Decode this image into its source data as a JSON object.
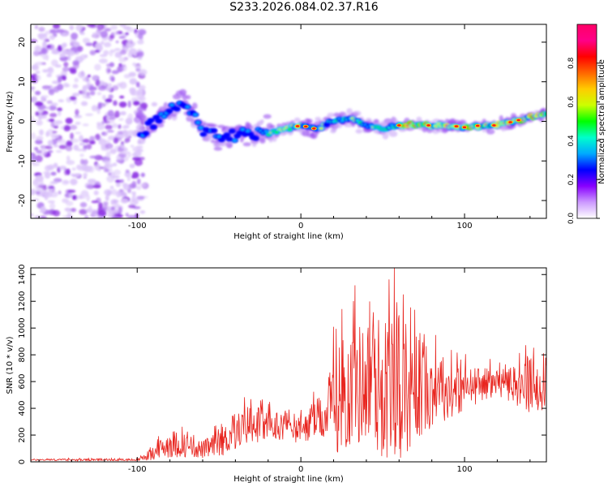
{
  "title": "S233.2026.084.02.37.R16",
  "chart_data": [
    {
      "type": "heatmap",
      "xlabel": "Height of straight line (km)",
      "ylabel": "Frequency (Hz)",
      "xlim": [
        -165,
        150
      ],
      "ylim": [
        -24.5,
        24.5
      ],
      "x_ticks": [
        -100,
        0,
        100
      ],
      "x_tick_labels": [
        "-100",
        "0",
        "100"
      ],
      "y_ticks": [
        -20,
        -10,
        0,
        10,
        20
      ],
      "y_tick_labels": [
        "-20",
        "-10",
        "0",
        "10",
        "20"
      ],
      "noise_region_x": [
        -165,
        -95
      ],
      "signal_track": [
        {
          "x": -98,
          "y": -3.5
        },
        {
          "x": -90,
          "y": 0
        },
        {
          "x": -80,
          "y": 3
        },
        {
          "x": -72,
          "y": 5
        },
        {
          "x": -60,
          "y": -2
        },
        {
          "x": -50,
          "y": -4
        },
        {
          "x": -40,
          "y": -3
        },
        {
          "x": -30,
          "y": -3
        },
        {
          "x": -20,
          "y": -3
        },
        {
          "x": -10,
          "y": -2
        },
        {
          "x": 0,
          "y": -1
        },
        {
          "x": 10,
          "y": -2
        },
        {
          "x": 20,
          "y": 0
        },
        {
          "x": 30,
          "y": 1
        },
        {
          "x": 40,
          "y": -1
        },
        {
          "x": 50,
          "y": -2
        },
        {
          "x": 60,
          "y": -1
        },
        {
          "x": 70,
          "y": -1
        },
        {
          "x": 80,
          "y": -1
        },
        {
          "x": 90,
          "y": -1
        },
        {
          "x": 100,
          "y": -1.5
        },
        {
          "x": 110,
          "y": -1
        },
        {
          "x": 120,
          "y": -1
        },
        {
          "x": 130,
          "y": 0
        },
        {
          "x": 140,
          "y": 1
        },
        {
          "x": 150,
          "y": 2
        }
      ],
      "colorbar": {
        "label": "Normalized spectral amplitude",
        "range": [
          0,
          1
        ],
        "ticks": [
          0.0,
          0.2,
          0.4,
          0.6,
          0.8
        ],
        "tick_labels": [
          "0.0",
          "0.2",
          "0.4",
          "0.6",
          "0.8"
        ],
        "colors": [
          "#ffffff",
          "#cc99ff",
          "#8800ff",
          "#0000ff",
          "#00aaff",
          "#00ffcc",
          "#00ff00",
          "#ccff00",
          "#ffcc00",
          "#ff6600",
          "#ff0000",
          "#ff0088",
          "#ff0066"
        ]
      }
    },
    {
      "type": "line",
      "xlabel": "Height of straight line (km)",
      "ylabel": "SNR (10 * v/v)",
      "xlim": [
        -165,
        150
      ],
      "ylim": [
        0,
        1450
      ],
      "x_ticks": [
        -100,
        0,
        100
      ],
      "x_tick_labels": [
        "-100",
        "0",
        "100"
      ],
      "y_ticks": [
        0,
        200,
        400,
        600,
        800,
        1000,
        1200,
        1400
      ],
      "y_tick_labels": [
        "0",
        "200",
        "400",
        "600",
        "800",
        "1000",
        "1200",
        "1400"
      ],
      "color": "#e8251f",
      "envelope_x": [
        -165,
        -100,
        -90,
        -80,
        -70,
        -60,
        -50,
        -40,
        -30,
        -20,
        -10,
        0,
        10,
        15,
        20,
        30,
        40,
        50,
        60,
        70,
        80,
        90,
        100,
        110,
        120,
        130,
        140,
        150
      ],
      "envelope_mean": [
        15,
        15,
        60,
        140,
        120,
        90,
        130,
        220,
        300,
        260,
        280,
        230,
        320,
        330,
        450,
        550,
        600,
        560,
        560,
        560,
        560,
        530,
        540,
        580,
        600,
        570,
        560,
        600
      ],
      "envelope_spread": [
        8,
        10,
        60,
        130,
        100,
        80,
        120,
        160,
        180,
        140,
        130,
        120,
        180,
        200,
        450,
        550,
        550,
        650,
        650,
        550,
        350,
        250,
        200,
        150,
        120,
        160,
        250,
        250
      ],
      "peak_value": 1450,
      "peak_x": 57
    }
  ]
}
